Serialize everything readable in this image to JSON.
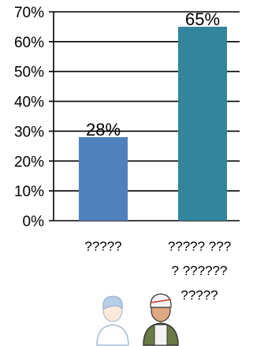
{
  "chart_data": {
    "type": "bar",
    "categories": [
      "?????",
      "????? ??? ? ?????? ?????"
    ],
    "values": [
      28,
      65
    ],
    "data_labels": [
      "28%",
      "65%"
    ],
    "ylim": [
      0,
      70
    ],
    "yticks": [
      "0%",
      "10%",
      "20%",
      "30%",
      "40%",
      "50%",
      "60%",
      "70%"
    ],
    "bar_colors": [
      "#4f81bd",
      "#31859c"
    ],
    "grid": true,
    "legend": "none"
  },
  "icons": [
    "person-icon",
    "injured-soldier-icon"
  ]
}
